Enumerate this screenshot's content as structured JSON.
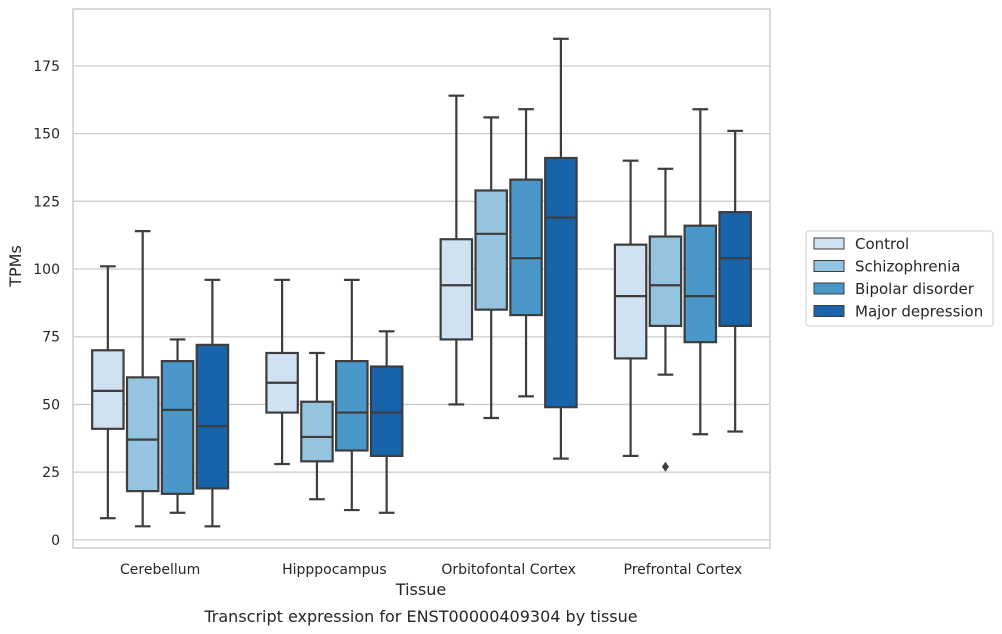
{
  "chart_data": {
    "type": "box",
    "xlabel": "Tissue",
    "ylabel": "TPMs",
    "caption": "Transcript expression for ENST00000409304 by tissue",
    "ylim": [
      -3,
      196
    ],
    "yticks": [
      0,
      25,
      50,
      75,
      100,
      125,
      150,
      175
    ],
    "grid": "horizontal",
    "legend_position": "right",
    "categories": [
      "Cerebellum",
      "Hipppocampus",
      "Orbitofontal Cortex",
      "Prefrontal Cortex"
    ],
    "series": [
      {
        "name": "Control",
        "color": "#d0e1f2",
        "boxes": [
          {
            "min": 8,
            "q1": 41,
            "median": 55,
            "q3": 70,
            "max": 101,
            "outliers": []
          },
          {
            "min": 28,
            "q1": 47,
            "median": 58,
            "q3": 69,
            "max": 96,
            "outliers": []
          },
          {
            "min": 50,
            "q1": 74,
            "median": 94,
            "q3": 111,
            "max": 164,
            "outliers": []
          },
          {
            "min": 31,
            "q1": 67,
            "median": 90,
            "q3": 109,
            "max": 140,
            "outliers": []
          }
        ]
      },
      {
        "name": "Schizophrenia",
        "color": "#94c4df",
        "boxes": [
          {
            "min": 5,
            "q1": 18,
            "median": 37,
            "q3": 60,
            "max": 114,
            "outliers": []
          },
          {
            "min": 15,
            "q1": 29,
            "median": 38,
            "q3": 51,
            "max": 69,
            "outliers": []
          },
          {
            "min": 45,
            "q1": 85,
            "median": 113,
            "q3": 129,
            "max": 156,
            "outliers": []
          },
          {
            "min": 61,
            "q1": 79,
            "median": 94,
            "q3": 112,
            "max": 137,
            "outliers": [
              27
            ]
          }
        ]
      },
      {
        "name": "Bipolar disorder",
        "color": "#4a98c9",
        "boxes": [
          {
            "min": 10,
            "q1": 17,
            "median": 48,
            "q3": 66,
            "max": 74,
            "outliers": []
          },
          {
            "min": 11,
            "q1": 33,
            "median": 47,
            "q3": 66,
            "max": 96,
            "outliers": []
          },
          {
            "min": 53,
            "q1": 83,
            "median": 104,
            "q3": 133,
            "max": 159,
            "outliers": []
          },
          {
            "min": 39,
            "q1": 73,
            "median": 90,
            "q3": 116,
            "max": 159,
            "outliers": []
          }
        ]
      },
      {
        "name": "Major depression",
        "color": "#1764ab",
        "boxes": [
          {
            "min": 5,
            "q1": 19,
            "median": 42,
            "q3": 72,
            "max": 96,
            "outliers": []
          },
          {
            "min": 10,
            "q1": 31,
            "median": 47,
            "q3": 64,
            "max": 77,
            "outliers": []
          },
          {
            "min": 30,
            "q1": 49,
            "median": 119,
            "q3": 141,
            "max": 185,
            "outliers": []
          },
          {
            "min": 40,
            "q1": 79,
            "median": 104,
            "q3": 121,
            "max": 151,
            "outliers": []
          }
        ]
      }
    ]
  }
}
